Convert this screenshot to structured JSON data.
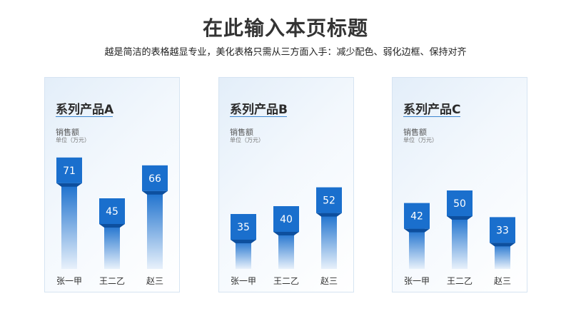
{
  "page": {
    "title": "在此输入本页标题",
    "subtitle": "越是简洁的表格越显专业，美化表格只需从三方面入手：减少配色、弱化边框、保持对齐"
  },
  "colors": {
    "bar_top": "#1a6fcd",
    "bar_bottom": "#e8f1fb",
    "cap_dark": "#0d4f9e"
  },
  "chart_data": [
    {
      "type": "bar",
      "title": "系列产品A",
      "ylabel": "销售额",
      "unit": "单位（万元）",
      "categories": [
        "张一甲",
        "王二乙",
        "赵三"
      ],
      "values": [
        71,
        45,
        66
      ],
      "ylim": [
        0,
        80
      ]
    },
    {
      "type": "bar",
      "title": "系列产品B",
      "ylabel": "销售额",
      "unit": "单位（万元）",
      "categories": [
        "张一甲",
        "王二乙",
        "赵三"
      ],
      "values": [
        35,
        40,
        52
      ],
      "ylim": [
        0,
        80
      ]
    },
    {
      "type": "bar",
      "title": "系列产品C",
      "ylabel": "销售额",
      "unit": "单位（万元）",
      "categories": [
        "张一甲",
        "王二乙",
        "赵三"
      ],
      "values": [
        42,
        50,
        33
      ],
      "ylim": [
        0,
        80
      ]
    }
  ]
}
